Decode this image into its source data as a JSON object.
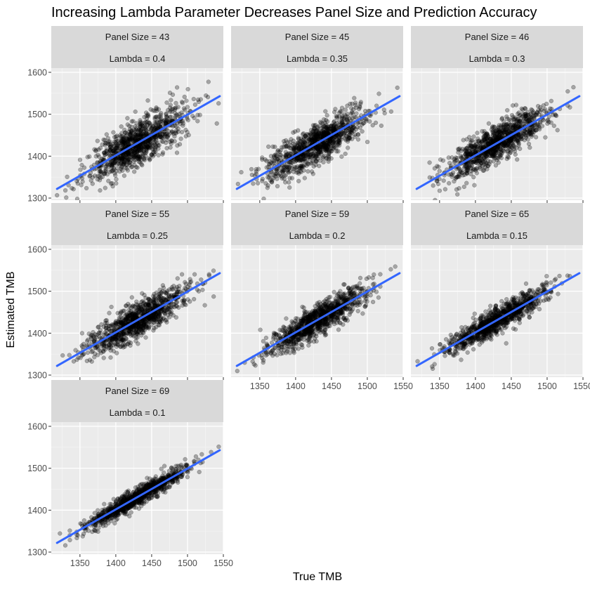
{
  "chart_data": {
    "type": "scatter",
    "title": "Increasing Lambda Parameter Decreases Panel Size and Prediction Accuracy",
    "xlabel": "True TMB",
    "ylabel": "Estimated TMB",
    "xlim": [
      1310,
      1550
    ],
    "ylim": [
      1295,
      1610
    ],
    "x_ticks": [
      1350,
      1400,
      1450,
      1500,
      1550
    ],
    "y_ticks": [
      1300,
      1400,
      1500,
      1600
    ],
    "grid": true,
    "point_color": "#000000",
    "point_alpha": 0.3,
    "fit_color": "#3366FF",
    "x_mean": 1430,
    "x_sd": 35,
    "points_per_panel": 1000,
    "panels": [
      {
        "panel_size_label": "Panel Size = 43",
        "lambda_label": "Lambda = 0.4",
        "panel_size": 43,
        "lambda": 0.4,
        "fit": [
          [
            1318,
            1322
          ],
          [
            1545,
            1543
          ]
        ],
        "residual_sd": 26
      },
      {
        "panel_size_label": "Panel Size = 45",
        "lambda_label": "Lambda = 0.35",
        "panel_size": 45,
        "lambda": 0.35,
        "fit": [
          [
            1318,
            1322
          ],
          [
            1545,
            1543
          ]
        ],
        "residual_sd": 24
      },
      {
        "panel_size_label": "Panel Size = 46",
        "lambda_label": "Lambda = 0.3",
        "panel_size": 46,
        "lambda": 0.3,
        "fit": [
          [
            1318,
            1322
          ],
          [
            1545,
            1543
          ]
        ],
        "residual_sd": 22
      },
      {
        "panel_size_label": "Panel Size = 55",
        "lambda_label": "Lambda = 0.25",
        "panel_size": 55,
        "lambda": 0.25,
        "fit": [
          [
            1318,
            1322
          ],
          [
            1545,
            1543
          ]
        ],
        "residual_sd": 20
      },
      {
        "panel_size_label": "Panel Size = 59",
        "lambda_label": "Lambda = 0.2",
        "panel_size": 59,
        "lambda": 0.2,
        "fit": [
          [
            1318,
            1322
          ],
          [
            1545,
            1543
          ]
        ],
        "residual_sd": 18
      },
      {
        "panel_size_label": "Panel Size = 65",
        "lambda_label": "Lambda = 0.15",
        "panel_size": 65,
        "lambda": 0.15,
        "fit": [
          [
            1318,
            1322
          ],
          [
            1545,
            1543
          ]
        ],
        "residual_sd": 15
      },
      {
        "panel_size_label": "Panel Size = 69",
        "lambda_label": "Lambda = 0.1",
        "panel_size": 69,
        "lambda": 0.1,
        "fit": [
          [
            1318,
            1322
          ],
          [
            1545,
            1543
          ]
        ],
        "residual_sd": 11
      }
    ]
  }
}
